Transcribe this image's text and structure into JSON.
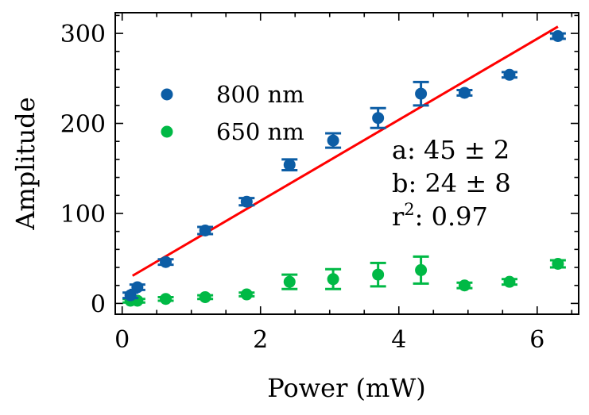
{
  "chart_data": {
    "type": "scatter",
    "title": "",
    "xlabel": "Power (mW)",
    "ylabel": "Amplitude",
    "xlim": [
      -0.1,
      6.6
    ],
    "ylim": [
      -12,
      323
    ],
    "xticks": [
      0,
      2,
      4,
      6
    ],
    "xtick_labels": [
      "0",
      "2",
      "4",
      "6"
    ],
    "yticks": [
      0,
      100,
      200,
      300
    ],
    "ytick_labels": [
      "0",
      "100",
      "200",
      "300"
    ],
    "grid": false,
    "legend_placement": "upper-left",
    "series": [
      {
        "name": "800 nm",
        "color": "#0c5da5",
        "x": [
          0.12,
          0.22,
          0.63,
          1.2,
          1.8,
          2.42,
          3.05,
          3.7,
          4.32,
          4.95,
          5.6,
          6.3
        ],
        "y": [
          9,
          18,
          46,
          81,
          113,
          154,
          181,
          206,
          233,
          234,
          254,
          297
        ],
        "yerr": [
          3,
          3,
          3,
          4,
          4,
          6,
          8,
          11,
          13,
          3,
          3,
          3
        ]
      },
      {
        "name": "650 nm",
        "color": "#00b945",
        "x": [
          0.12,
          0.22,
          0.63,
          1.2,
          1.8,
          2.42,
          3.05,
          3.7,
          4.32,
          4.95,
          5.6,
          6.3
        ],
        "y": [
          3,
          3,
          5,
          7,
          10,
          24,
          27,
          32,
          37,
          20,
          24,
          44
        ],
        "yerr": [
          2,
          2,
          2,
          2,
          2,
          8,
          11,
          13,
          15,
          3,
          3,
          4
        ]
      }
    ],
    "fit": {
      "color": "#ff0000",
      "slope": 45,
      "intercept": 24,
      "x_range": [
        0.15,
        6.3
      ]
    },
    "annotations": {
      "line_a": "a:  45 ± 2",
      "line_b": "b:  24 ± 8",
      "r2_prefix": "r",
      "r2_sup": "2",
      "r2_suffix": ":  0.97"
    }
  }
}
